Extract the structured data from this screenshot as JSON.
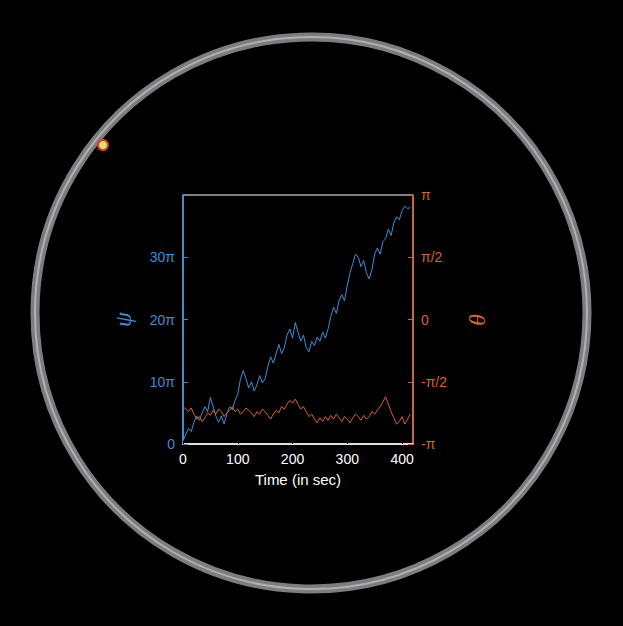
{
  "chart_data": {
    "type": "line",
    "x_label": "Time (in sec)",
    "y_label": "ψ",
    "y2_label": "θ",
    "x": [
      0,
      5,
      10,
      15,
      20,
      25,
      30,
      35,
      40,
      45,
      50,
      55,
      60,
      65,
      70,
      75,
      80,
      85,
      90,
      95,
      100,
      105,
      110,
      115,
      120,
      125,
      130,
      135,
      140,
      145,
      150,
      155,
      160,
      165,
      170,
      175,
      180,
      185,
      190,
      195,
      200,
      205,
      210,
      215,
      220,
      225,
      230,
      235,
      240,
      245,
      250,
      255,
      260,
      265,
      270,
      275,
      280,
      285,
      290,
      295,
      300,
      305,
      310,
      315,
      320,
      325,
      330,
      335,
      340,
      345,
      350,
      355,
      360,
      365,
      370,
      375,
      380,
      385,
      390,
      395,
      400,
      405,
      410,
      415
    ],
    "series": [
      {
        "name": "ψ",
        "color": "#3b8fd6",
        "values": [
          0.5,
          1.5,
          2.5,
          2.0,
          3.5,
          4.5,
          3.8,
          5.0,
          6.0,
          5.2,
          7.5,
          6.0,
          4.5,
          3.5,
          4.5,
          3.2,
          4.8,
          6.0,
          5.5,
          7.0,
          8.0,
          10.5,
          11.8,
          10.5,
          9.0,
          10.0,
          8.5,
          9.5,
          11.0,
          9.8,
          10.5,
          12.5,
          14.0,
          13.0,
          14.5,
          16.0,
          14.5,
          15.5,
          17.5,
          18.5,
          17.0,
          19.5,
          18.0,
          16.5,
          17.5,
          15.5,
          14.8,
          16.5,
          15.8,
          17.2,
          16.5,
          18.0,
          17.0,
          18.5,
          20.5,
          22.0,
          21.0,
          23.0,
          24.0,
          23.0,
          25.5,
          27.5,
          29.0,
          30.5,
          30.0,
          28.5,
          29.5,
          27.5,
          26.5,
          28.0,
          30.5,
          31.5,
          30.5,
          32.5,
          33.0,
          34.5,
          33.5,
          35.5,
          36.5,
          36.0,
          37.5,
          38.2,
          37.8,
          38.0
        ]
      },
      {
        "name": "θ",
        "color": "#d9622b",
        "axis": "y2",
        "values": [
          -0.7,
          -0.72,
          -0.74,
          -0.71,
          -0.76,
          -0.8,
          -0.78,
          -0.82,
          -0.79,
          -0.75,
          -0.77,
          -0.73,
          -0.76,
          -0.72,
          -0.74,
          -0.78,
          -0.75,
          -0.73,
          -0.7,
          -0.74,
          -0.72,
          -0.76,
          -0.74,
          -0.71,
          -0.73,
          -0.75,
          -0.78,
          -0.74,
          -0.76,
          -0.72,
          -0.74,
          -0.77,
          -0.8,
          -0.76,
          -0.73,
          -0.75,
          -0.7,
          -0.72,
          -0.68,
          -0.65,
          -0.67,
          -0.64,
          -0.68,
          -0.72,
          -0.7,
          -0.74,
          -0.78,
          -0.76,
          -0.8,
          -0.83,
          -0.79,
          -0.82,
          -0.78,
          -0.81,
          -0.77,
          -0.8,
          -0.76,
          -0.79,
          -0.82,
          -0.78,
          -0.8,
          -0.83,
          -0.79,
          -0.76,
          -0.78,
          -0.81,
          -0.77,
          -0.8,
          -0.78,
          -0.74,
          -0.76,
          -0.73,
          -0.7,
          -0.66,
          -0.62,
          -0.68,
          -0.74,
          -0.79,
          -0.84,
          -0.82,
          -0.78,
          -0.84,
          -0.8,
          -0.76
        ]
      }
    ],
    "xlim": [
      0,
      420
    ],
    "xticks": [
      0,
      100,
      200,
      300,
      400
    ],
    "ylim": [
      0,
      40
    ],
    "yticks": [
      0,
      {
        "value": 10,
        "label": "10π"
      },
      {
        "value": 20,
        "label": "20π"
      },
      {
        "value": 30,
        "label": "30π"
      }
    ],
    "y2lim": [
      -1,
      1
    ],
    "y2ticks": [
      {
        "value": -1,
        "label": "-π"
      },
      {
        "value": -0.5,
        "label": "-π/2"
      },
      0,
      {
        "value": 0.5,
        "label": "π/2"
      },
      {
        "value": 1,
        "label": "π"
      }
    ],
    "grid": false
  }
}
